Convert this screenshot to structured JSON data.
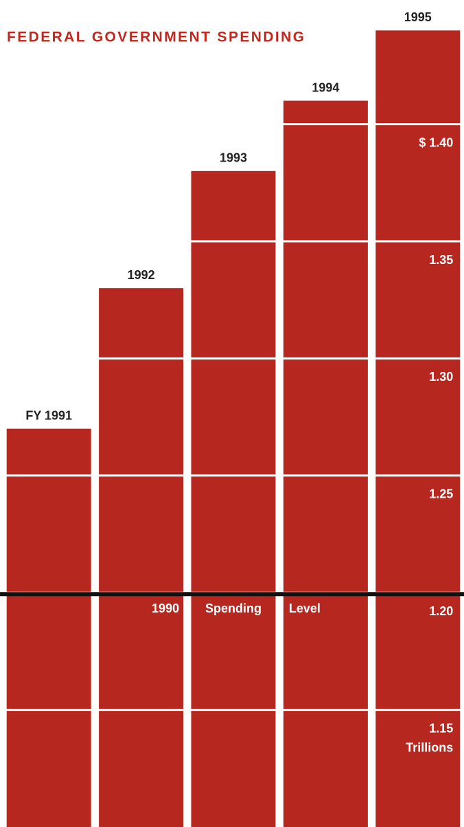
{
  "chart_data": {
    "type": "bar",
    "title": "FEDERAL GOVERNMENT SPENDING",
    "categories": [
      "FY 1991",
      "1992",
      "1993",
      "1994",
      "1995"
    ],
    "values": [
      1.27,
      1.33,
      1.38,
      1.41,
      1.44
    ],
    "color": "#b5271f",
    "ylim": [
      1.1,
      1.453
    ],
    "yticks": [
      {
        "value": 1.4,
        "label": "$ 1.40"
      },
      1.35,
      {
        "value": 1.3,
        "label": "1.30"
      },
      1.25,
      {
        "value": 1.2,
        "label": "1.20"
      },
      1.15
    ],
    "y_unit": "Trillions",
    "grid": true,
    "reference": {
      "value": 1.2,
      "words": [
        "1990",
        "Spending",
        "Level"
      ]
    }
  }
}
